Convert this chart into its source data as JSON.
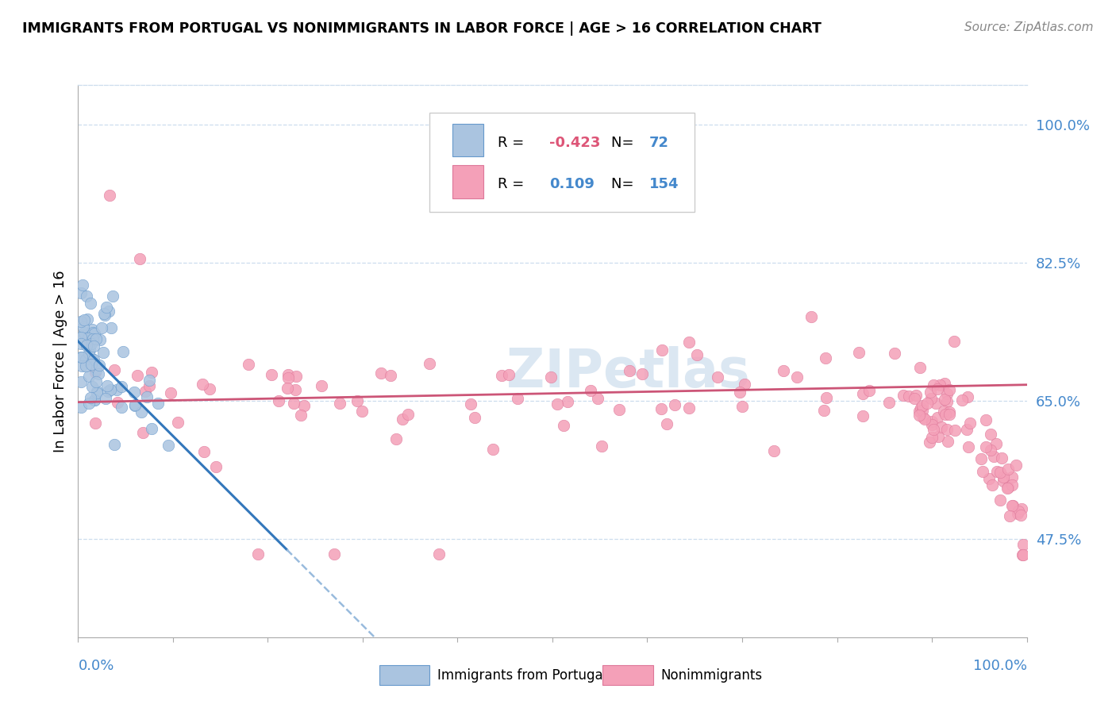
{
  "title": "IMMIGRANTS FROM PORTUGAL VS NONIMMIGRANTS IN LABOR FORCE | AGE > 16 CORRELATION CHART",
  "source": "Source: ZipAtlas.com",
  "ylabel": "In Labor Force | Age > 16",
  "R1": -0.423,
  "N1": 72,
  "R2": 0.109,
  "N2": 154,
  "color_blue_fill": "#aac4e0",
  "color_blue_edge": "#6699cc",
  "color_pink_fill": "#f4a0b8",
  "color_pink_edge": "#dd7799",
  "color_blue_text": "#4488cc",
  "color_pink_text": "#dd5577",
  "color_line_blue": "#3377bb",
  "color_line_pink": "#cc5577",
  "color_line_dashed": "#99bbdd",
  "color_watermark": "#ccdded",
  "color_grid": "#ccddee",
  "legend_label1": "Immigrants from Portugal",
  "legend_label2": "Nonimmigrants",
  "xlim": [
    0.0,
    1.0
  ],
  "ylim": [
    0.35,
    1.05
  ],
  "yticks": [
    0.475,
    0.65,
    0.825,
    1.0
  ],
  "ytick_labels": [
    "47.5%",
    "65.0%",
    "82.5%",
    "100.0%"
  ]
}
